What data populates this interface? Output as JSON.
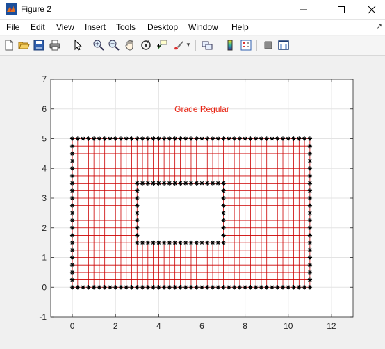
{
  "window": {
    "title": "Figure 2",
    "minimize_label": "Minimize",
    "maximize_label": "Maximize",
    "close_label": "Close"
  },
  "menu": {
    "items": [
      "File",
      "Edit",
      "View",
      "Insert",
      "Tools",
      "Desktop",
      "Window",
      "Help"
    ]
  },
  "toolbar": {
    "buttons": [
      "new-figure-icon",
      "open-file-icon",
      "save-icon",
      "print-icon",
      "pointer-icon",
      "zoom-in-icon",
      "zoom-out-icon",
      "pan-icon",
      "rotate-3d-icon",
      "data-cursor-icon",
      "brush-icon",
      "link-plot-icon",
      "colorbar-icon",
      "legend-icon",
      "hide-plot-tools-icon",
      "show-plot-tools-icon"
    ]
  },
  "colors": {
    "mesh": "#cc0000",
    "marker": "#000000",
    "title": "#e8200f",
    "grid": "#e3e3e3",
    "axes": "#262626"
  },
  "chart_data": {
    "type": "scatter",
    "title": "Grade Regular",
    "xlabel": "",
    "ylabel": "",
    "xlim": [
      -1,
      13
    ],
    "ylim": [
      -1,
      7
    ],
    "xticks": [
      0,
      2,
      4,
      6,
      8,
      10,
      12
    ],
    "yticks": [
      -1,
      0,
      1,
      2,
      3,
      4,
      5,
      6,
      7
    ],
    "grid": true,
    "mesh": {
      "x_min": 0,
      "x_max": 11,
      "y_min": 0,
      "y_max": 5,
      "dx": 0.25,
      "dy": 0.25,
      "hole": {
        "x_min": 3,
        "x_max": 7,
        "y_min": 1.5,
        "y_max": 3.5
      }
    },
    "series": [
      {
        "name": "outer boundary",
        "marker": "*",
        "rect": [
          0,
          11,
          0,
          5
        ],
        "spacing": 0.25
      },
      {
        "name": "inner boundary",
        "marker": "*",
        "rect": [
          3,
          7,
          1.5,
          3.5
        ],
        "spacing": 0.25
      }
    ]
  }
}
